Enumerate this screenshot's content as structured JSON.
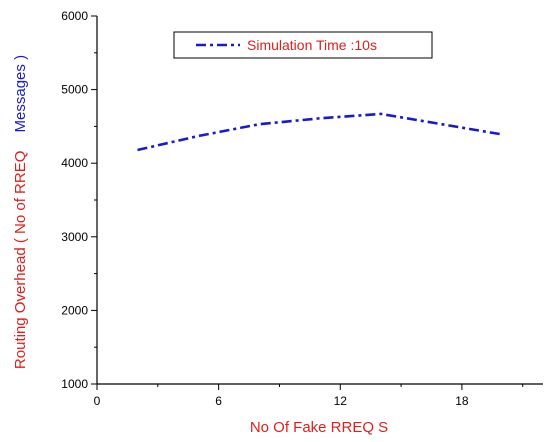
{
  "chart_data": {
    "type": "line",
    "title": "",
    "xlabel": "No Of Fake RREQ S",
    "ylabel_parts": [
      "Routing Overhead ( No of RREQ",
      "Messages )"
    ],
    "xlim": [
      0,
      22
    ],
    "ylim": [
      1000,
      6000
    ],
    "x_ticks": [
      0,
      6,
      12,
      18
    ],
    "y_ticks": [
      1000,
      2000,
      3000,
      4000,
      5000,
      6000
    ],
    "legend_position": "top-center",
    "series": [
      {
        "name": "Simulation Time :10s",
        "color": "#1a1acc",
        "line_style": "dash-dot",
        "x": [
          2,
          5,
          8,
          11,
          14,
          17,
          20
        ],
        "y": [
          4180,
          4370,
          4530,
          4610,
          4670,
          4530,
          4390
        ]
      }
    ],
    "colors": {
      "label_red": "#e0201c",
      "label_blue": "#1a1acc",
      "axis": "#000000"
    }
  }
}
